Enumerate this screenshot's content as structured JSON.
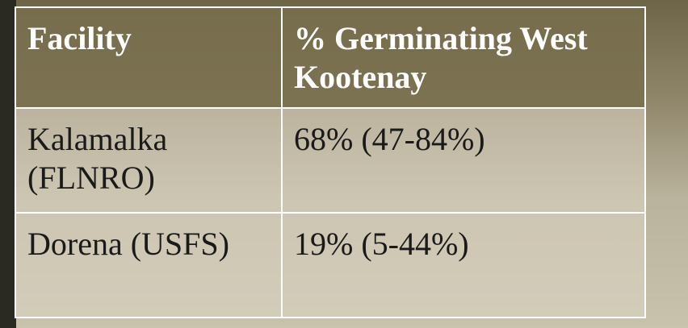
{
  "table": {
    "header": [
      "Facility",
      "% Germinating West Kootenay"
    ],
    "rows": [
      [
        "Kalamalka (FLNRO)",
        "68% (47-84%)"
      ],
      [
        "Dorena (USFS)",
        "19% (5-44%)"
      ]
    ]
  }
}
